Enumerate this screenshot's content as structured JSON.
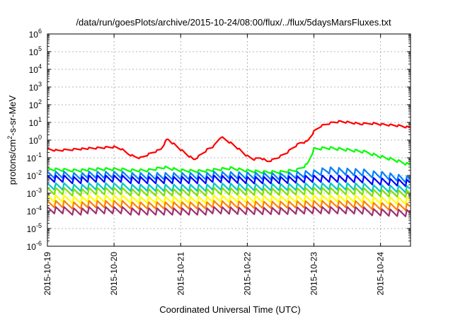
{
  "chart_data": {
    "type": "line",
    "title": "/data/run/goesPlots/archive/2015-10-24/08:00/flux/../flux/5daysMarsFluxes.txt",
    "xlabel": "Coordinated Universal Time (UTC)",
    "ylabel": {
      "base": "protons/cm",
      "sup": "2",
      "rest": "-s-sr-MeV"
    },
    "y_scale": "log",
    "ylim_exp": [
      -6,
      6
    ],
    "y_ticks": [
      {
        "base": "10",
        "exp": "-6"
      },
      {
        "base": "10",
        "exp": "-5"
      },
      {
        "base": "10",
        "exp": "-4"
      },
      {
        "base": "10",
        "exp": "-3"
      },
      {
        "base": "10",
        "exp": "-2"
      },
      {
        "base": "10",
        "exp": "-1"
      },
      {
        "base": "10",
        "exp": "0"
      },
      {
        "base": "10",
        "exp": "1"
      },
      {
        "base": "10",
        "exp": "2"
      },
      {
        "base": "10",
        "exp": "3"
      },
      {
        "base": "10",
        "exp": "4"
      },
      {
        "base": "10",
        "exp": "5"
      },
      {
        "base": "10",
        "exp": "6"
      }
    ],
    "xlim_days": [
      0,
      5.45
    ],
    "x_ticks": [
      {
        "label": "2015-10-19",
        "day": 0
      },
      {
        "label": "2015-10-20",
        "day": 1
      },
      {
        "label": "2015-10-21",
        "day": 2
      },
      {
        "label": "2015-10-22",
        "day": 3
      },
      {
        "label": "2015-10-23",
        "day": 4
      },
      {
        "label": "2015-10-24",
        "day": 5
      }
    ],
    "grid": true,
    "series": [
      {
        "color": "#ff0000",
        "values": [
          [
            0.0,
            0.3
          ],
          [
            0.15,
            0.25
          ],
          [
            0.3,
            0.28
          ],
          [
            0.45,
            0.32
          ],
          [
            0.6,
            0.33
          ],
          [
            0.75,
            0.35
          ],
          [
            0.9,
            0.38
          ],
          [
            1.0,
            0.4
          ],
          [
            1.1,
            0.32
          ],
          [
            1.2,
            0.18
          ],
          [
            1.3,
            0.12
          ],
          [
            1.4,
            0.1
          ],
          [
            1.5,
            0.15
          ],
          [
            1.6,
            0.22
          ],
          [
            1.7,
            0.3
          ],
          [
            1.8,
            1.2
          ],
          [
            1.9,
            0.6
          ],
          [
            2.0,
            0.3
          ],
          [
            2.1,
            0.15
          ],
          [
            2.2,
            0.08
          ],
          [
            2.3,
            0.15
          ],
          [
            2.4,
            0.3
          ],
          [
            2.5,
            0.45
          ],
          [
            2.6,
            1.5
          ],
          [
            2.7,
            0.9
          ],
          [
            2.8,
            0.5
          ],
          [
            2.9,
            0.25
          ],
          [
            3.0,
            0.12
          ],
          [
            3.1,
            0.08
          ],
          [
            3.2,
            0.1
          ],
          [
            3.3,
            0.06
          ],
          [
            3.4,
            0.08
          ],
          [
            3.5,
            0.12
          ],
          [
            3.6,
            0.2
          ],
          [
            3.7,
            0.4
          ],
          [
            3.8,
            0.7
          ],
          [
            3.9,
            0.8
          ],
          [
            4.0,
            3.0
          ],
          [
            4.1,
            6.0
          ],
          [
            4.2,
            8.0
          ],
          [
            4.3,
            10.0
          ],
          [
            4.4,
            11.0
          ],
          [
            4.5,
            10.0
          ],
          [
            4.6,
            9.0
          ],
          [
            4.7,
            8.0
          ],
          [
            4.8,
            8.5
          ],
          [
            4.9,
            9.0
          ],
          [
            5.0,
            8.0
          ],
          [
            5.1,
            7.5
          ],
          [
            5.2,
            7.0
          ],
          [
            5.3,
            6.5
          ],
          [
            5.4,
            5.5
          ],
          [
            5.45,
            5.0
          ]
        ]
      },
      {
        "color": "#00ff00",
        "values": [
          [
            0.0,
            0.022
          ],
          [
            0.25,
            0.02
          ],
          [
            0.5,
            0.02
          ],
          [
            0.75,
            0.022
          ],
          [
            1.0,
            0.022
          ],
          [
            1.25,
            0.02
          ],
          [
            1.5,
            0.02
          ],
          [
            1.75,
            0.03
          ],
          [
            2.0,
            0.02
          ],
          [
            2.25,
            0.018
          ],
          [
            2.5,
            0.02
          ],
          [
            2.75,
            0.025
          ],
          [
            3.0,
            0.018
          ],
          [
            3.25,
            0.015
          ],
          [
            3.5,
            0.015
          ],
          [
            3.75,
            0.02
          ],
          [
            3.9,
            0.04
          ],
          [
            4.0,
            0.3
          ],
          [
            4.2,
            0.35
          ],
          [
            4.4,
            0.3
          ],
          [
            4.6,
            0.25
          ],
          [
            4.8,
            0.2
          ],
          [
            5.0,
            0.12
          ],
          [
            5.2,
            0.08
          ],
          [
            5.45,
            0.04
          ]
        ]
      },
      {
        "color": "#0080ff",
        "values": [
          [
            0.0,
            0.01
          ],
          [
            0.5,
            0.01
          ],
          [
            1.0,
            0.01
          ],
          [
            1.5,
            0.01
          ],
          [
            2.0,
            0.01
          ],
          [
            2.5,
            0.01
          ],
          [
            3.0,
            0.009
          ],
          [
            3.5,
            0.008
          ],
          [
            4.0,
            0.012
          ],
          [
            4.2,
            0.018
          ],
          [
            4.5,
            0.015
          ],
          [
            5.0,
            0.012
          ],
          [
            5.45,
            0.006
          ]
        ]
      },
      {
        "color": "#0000ff",
        "values": [
          [
            0.0,
            0.006
          ],
          [
            0.5,
            0.006
          ],
          [
            1.0,
            0.006
          ],
          [
            1.5,
            0.006
          ],
          [
            2.0,
            0.006
          ],
          [
            2.5,
            0.006
          ],
          [
            3.0,
            0.005
          ],
          [
            3.5,
            0.005
          ],
          [
            4.0,
            0.006
          ],
          [
            4.5,
            0.006
          ],
          [
            5.0,
            0.005
          ],
          [
            5.45,
            0.004
          ]
        ]
      },
      {
        "color": "#00c8c8",
        "values": [
          [
            0.0,
            0.0022
          ],
          [
            0.5,
            0.0022
          ],
          [
            1.0,
            0.0022
          ],
          [
            1.5,
            0.0022
          ],
          [
            2.0,
            0.0022
          ],
          [
            2.5,
            0.0022
          ],
          [
            3.0,
            0.002
          ],
          [
            3.5,
            0.002
          ],
          [
            4.0,
            0.0022
          ],
          [
            4.5,
            0.0022
          ],
          [
            5.0,
            0.002
          ],
          [
            5.45,
            0.0018
          ]
        ]
      },
      {
        "color": "#80e000",
        "values": [
          [
            0.0,
            0.0012
          ],
          [
            0.5,
            0.0012
          ],
          [
            1.0,
            0.0012
          ],
          [
            1.5,
            0.0012
          ],
          [
            2.0,
            0.0012
          ],
          [
            2.5,
            0.0012
          ],
          [
            3.0,
            0.0011
          ],
          [
            3.5,
            0.0011
          ],
          [
            4.0,
            0.0012
          ],
          [
            4.5,
            0.0012
          ],
          [
            5.0,
            0.0011
          ],
          [
            5.45,
            0.001
          ]
        ]
      },
      {
        "color": "#ffff00",
        "values": [
          [
            0.0,
            0.00045
          ],
          [
            0.5,
            0.00045
          ],
          [
            1.0,
            0.00045
          ],
          [
            1.5,
            0.00045
          ],
          [
            2.0,
            0.00045
          ],
          [
            2.5,
            0.00045
          ],
          [
            3.0,
            0.00042
          ],
          [
            3.5,
            0.00042
          ],
          [
            4.0,
            0.00045
          ],
          [
            4.5,
            0.00045
          ],
          [
            5.0,
            0.00042
          ],
          [
            5.45,
            0.0004
          ]
        ]
      },
      {
        "color": "#ff8000",
        "values": [
          [
            0.0,
            0.00022
          ],
          [
            0.5,
            0.00022
          ],
          [
            1.0,
            0.00022
          ],
          [
            1.5,
            0.00022
          ],
          [
            2.0,
            0.00022
          ],
          [
            2.5,
            0.00022
          ],
          [
            3.0,
            0.0002
          ],
          [
            3.5,
            0.0002
          ],
          [
            4.0,
            0.00022
          ],
          [
            4.5,
            0.00022
          ],
          [
            5.0,
            0.0002
          ],
          [
            5.45,
            0.00018
          ]
        ]
      },
      {
        "color": "#a03070",
        "values": [
          [
            0.0,
            0.0001
          ],
          [
            0.5,
            0.0001
          ],
          [
            1.0,
            0.0001
          ],
          [
            1.5,
            0.0001
          ],
          [
            2.0,
            0.0001
          ],
          [
            2.5,
            0.0001
          ],
          [
            3.0,
            9e-05
          ],
          [
            3.5,
            9e-05
          ],
          [
            4.0,
            0.0001
          ],
          [
            4.5,
            0.0001
          ],
          [
            5.0,
            9e-05
          ],
          [
            5.45,
            8e-05
          ]
        ]
      }
    ]
  }
}
